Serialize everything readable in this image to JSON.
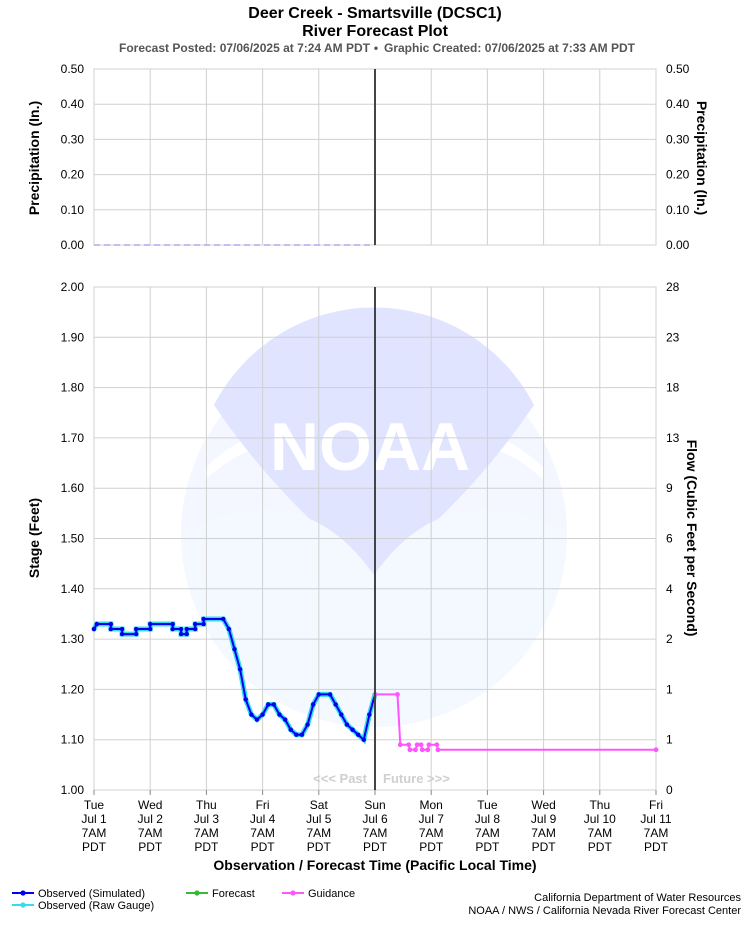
{
  "chart_data": {
    "type": "line",
    "title": "Deer Creek - Smartsville (DCSC1)",
    "subtitle": "River Forecast Plot",
    "posted": "Forecast Posted: 07/06/2025 at 7:24 AM PDT",
    "created": "Graphic Created: 07/06/2025 at 7:33 AM PDT",
    "xlabel": "Observation / Forecast Time (Pacific Local Time)",
    "x_ticks": [
      {
        "d": 0,
        "lines": [
          "Tue",
          "Jul 1",
          "7AM",
          "PDT"
        ]
      },
      {
        "d": 1,
        "lines": [
          "Wed",
          "Jul 2",
          "7AM",
          "PDT"
        ]
      },
      {
        "d": 2,
        "lines": [
          "Thu",
          "Jul 3",
          "7AM",
          "PDT"
        ]
      },
      {
        "d": 3,
        "lines": [
          "Fri",
          "Jul 4",
          "7AM",
          "PDT"
        ]
      },
      {
        "d": 4,
        "lines": [
          "Sat",
          "Jul 5",
          "7AM",
          "PDT"
        ]
      },
      {
        "d": 5,
        "lines": [
          "Sun",
          "Jul 6",
          "7AM",
          "PDT"
        ]
      },
      {
        "d": 6,
        "lines": [
          "Mon",
          "Jul 7",
          "7AM",
          "PDT"
        ]
      },
      {
        "d": 7,
        "lines": [
          "Tue",
          "Jul 8",
          "7AM",
          "PDT"
        ]
      },
      {
        "d": 8,
        "lines": [
          "Wed",
          "Jul 9",
          "7AM",
          "PDT"
        ]
      },
      {
        "d": 9,
        "lines": [
          "Thu",
          "Jul 10",
          "7AM",
          "PDT"
        ]
      },
      {
        "d": 10,
        "lines": [
          "Fri",
          "Jul 11",
          "7AM",
          "PDT"
        ]
      }
    ],
    "x_range": [
      0,
      10
    ],
    "now": 5,
    "past_label": "<<< Past",
    "future_label": "Future >>>",
    "precip": {
      "ylabel_left": "Precipitation (In.)",
      "ylabel_right": "Precipitation (In.)",
      "ylim": [
        0,
        0.5
      ],
      "ticks": [
        "0.00",
        "0.10",
        "0.20",
        "0.30",
        "0.40",
        "0.50"
      ],
      "values": []
    },
    "stage": {
      "ylabel_left": "Stage (Feet)",
      "ylabel_right": "Flow (Cubic Feet per Second)",
      "ylim": [
        1.0,
        2.0
      ],
      "ticks": [
        "1.00",
        "1.10",
        "1.20",
        "1.30",
        "1.40",
        "1.50",
        "1.60",
        "1.70",
        "1.80",
        "1.90",
        "2.00"
      ],
      "flow_ticks": [
        "0",
        "1",
        "1",
        "2",
        "4",
        "6",
        "9",
        "13",
        "18",
        "23",
        "28"
      ],
      "observed_simulated": [
        [
          0.0,
          1.32
        ],
        [
          0.05,
          1.33
        ],
        [
          0.3,
          1.33
        ],
        [
          0.3,
          1.32
        ],
        [
          0.5,
          1.32
        ],
        [
          0.5,
          1.31
        ],
        [
          0.75,
          1.31
        ],
        [
          0.75,
          1.32
        ],
        [
          1.0,
          1.32
        ],
        [
          1.0,
          1.33
        ],
        [
          1.4,
          1.33
        ],
        [
          1.4,
          1.32
        ],
        [
          1.55,
          1.32
        ],
        [
          1.55,
          1.31
        ],
        [
          1.65,
          1.31
        ],
        [
          1.65,
          1.32
        ],
        [
          1.8,
          1.32
        ],
        [
          1.8,
          1.33
        ],
        [
          1.95,
          1.33
        ],
        [
          1.95,
          1.34
        ],
        [
          2.3,
          1.34
        ],
        [
          2.4,
          1.32
        ],
        [
          2.5,
          1.28
        ],
        [
          2.6,
          1.24
        ],
        [
          2.7,
          1.18
        ],
        [
          2.8,
          1.15
        ],
        [
          2.9,
          1.14
        ],
        [
          3.0,
          1.15
        ],
        [
          3.1,
          1.17
        ],
        [
          3.2,
          1.17
        ],
        [
          3.3,
          1.15
        ],
        [
          3.4,
          1.14
        ],
        [
          3.5,
          1.12
        ],
        [
          3.6,
          1.11
        ],
        [
          3.7,
          1.11
        ],
        [
          3.8,
          1.13
        ],
        [
          3.9,
          1.17
        ],
        [
          4.0,
          1.19
        ],
        [
          4.2,
          1.19
        ],
        [
          4.3,
          1.17
        ],
        [
          4.4,
          1.15
        ],
        [
          4.5,
          1.13
        ],
        [
          4.6,
          1.12
        ],
        [
          4.7,
          1.11
        ],
        [
          4.8,
          1.1
        ],
        [
          4.9,
          1.15
        ],
        [
          5.0,
          1.19
        ]
      ],
      "observed_raw": [
        [
          0.0,
          1.32
        ],
        [
          0.05,
          1.33
        ],
        [
          0.3,
          1.33
        ],
        [
          0.3,
          1.32
        ],
        [
          0.5,
          1.32
        ],
        [
          0.5,
          1.31
        ],
        [
          0.75,
          1.31
        ],
        [
          0.75,
          1.32
        ],
        [
          1.0,
          1.32
        ],
        [
          1.0,
          1.33
        ],
        [
          1.4,
          1.33
        ],
        [
          1.4,
          1.32
        ],
        [
          1.55,
          1.32
        ],
        [
          1.55,
          1.31
        ],
        [
          1.65,
          1.31
        ],
        [
          1.65,
          1.32
        ],
        [
          1.8,
          1.32
        ],
        [
          1.8,
          1.33
        ],
        [
          1.95,
          1.33
        ],
        [
          1.95,
          1.34
        ],
        [
          2.3,
          1.34
        ],
        [
          2.4,
          1.32
        ],
        [
          2.5,
          1.28
        ],
        [
          2.6,
          1.24
        ],
        [
          2.7,
          1.18
        ],
        [
          2.8,
          1.15
        ],
        [
          2.9,
          1.14
        ],
        [
          3.0,
          1.15
        ],
        [
          3.1,
          1.17
        ],
        [
          3.2,
          1.17
        ],
        [
          3.3,
          1.15
        ],
        [
          3.4,
          1.14
        ],
        [
          3.5,
          1.12
        ],
        [
          3.6,
          1.11
        ],
        [
          3.7,
          1.11
        ],
        [
          3.8,
          1.13
        ],
        [
          3.9,
          1.17
        ],
        [
          4.0,
          1.19
        ],
        [
          4.2,
          1.19
        ],
        [
          4.3,
          1.17
        ],
        [
          4.4,
          1.15
        ],
        [
          4.5,
          1.13
        ],
        [
          4.6,
          1.12
        ],
        [
          4.7,
          1.11
        ],
        [
          4.8,
          1.1
        ],
        [
          4.9,
          1.15
        ],
        [
          5.0,
          1.19
        ]
      ],
      "guidance": [
        [
          5.0,
          1.19
        ],
        [
          5.4,
          1.19
        ],
        [
          5.45,
          1.09
        ],
        [
          5.6,
          1.09
        ],
        [
          5.62,
          1.08
        ],
        [
          5.72,
          1.08
        ],
        [
          5.75,
          1.09
        ],
        [
          5.82,
          1.09
        ],
        [
          5.84,
          1.08
        ],
        [
          5.94,
          1.08
        ],
        [
          5.96,
          1.09
        ],
        [
          6.1,
          1.09
        ],
        [
          6.12,
          1.08
        ],
        [
          10.0,
          1.08
        ]
      ],
      "forecast": []
    },
    "legend": [
      {
        "name": "Observed (Simulated)",
        "color": "#0000ee"
      },
      {
        "name": "Observed (Raw Gauge)",
        "color": "#33ddee"
      },
      {
        "name": "Forecast",
        "color": "#33bb33"
      },
      {
        "name": "Guidance",
        "color": "#ff55ff"
      }
    ],
    "credit_lines": [
      "California Department of Water Resources",
      "NOAA / NWS / California Nevada River Forecast Center"
    ],
    "watermark": "NOAA"
  }
}
